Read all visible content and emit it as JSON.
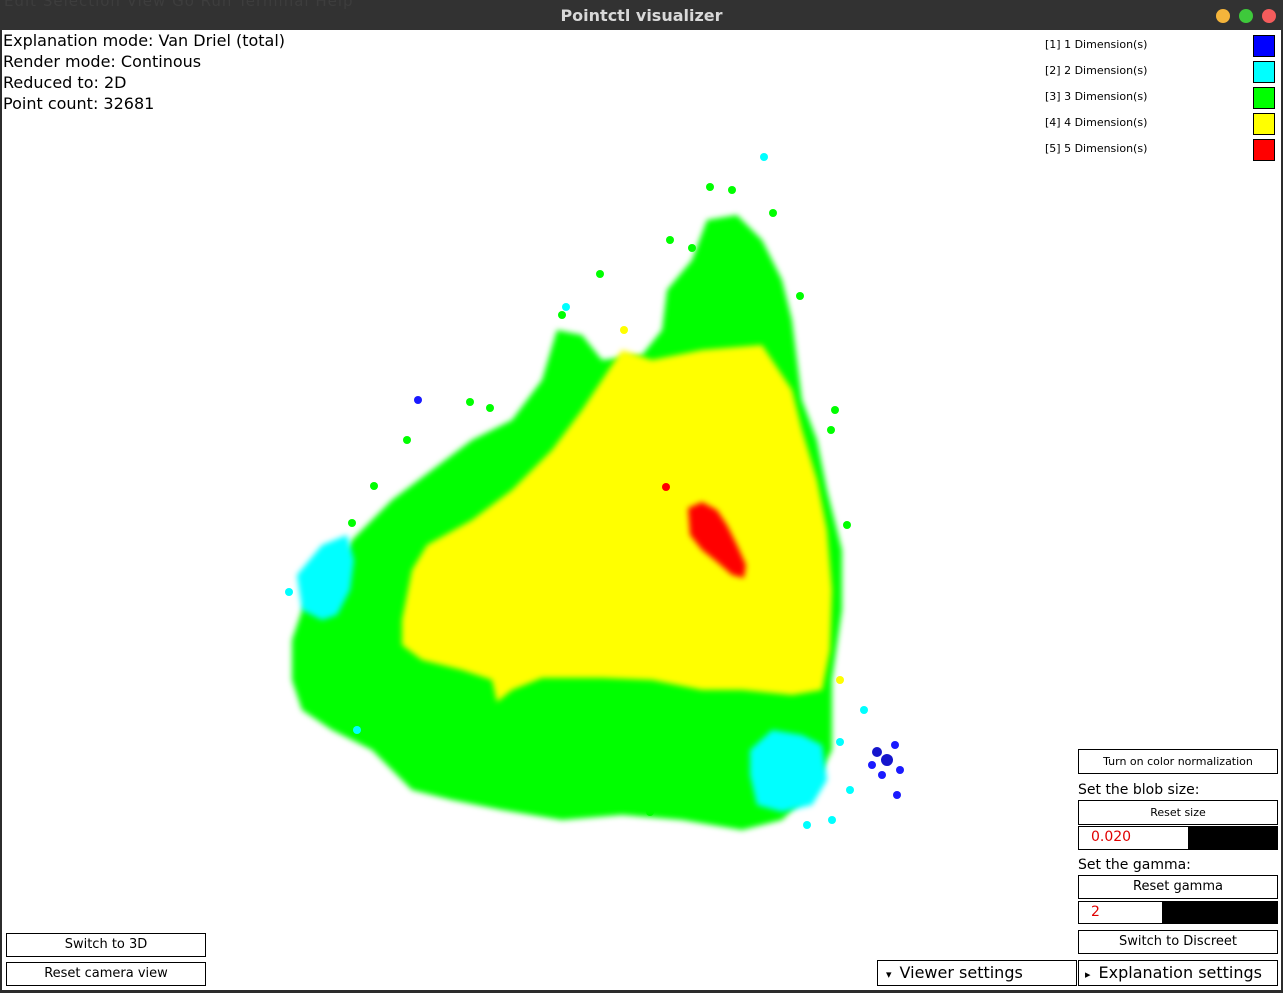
{
  "window": {
    "title": "Pointctl visualizer",
    "ghost_menu": "Edit   Selection   View   Go   Run   Terminal   Help"
  },
  "info": {
    "explanation_mode": "Explanation mode: Van Driel (total)",
    "render_mode": "Render mode: Continous",
    "reduced_to": "Reduced to: 2D",
    "point_count": "Point count: 32681"
  },
  "legend": [
    {
      "label": "[1] 1 Dimension(s)",
      "color": "#0000ff"
    },
    {
      "label": "[2] 2 Dimension(s)",
      "color": "#00ffff"
    },
    {
      "label": "[3] 3 Dimension(s)",
      "color": "#00ff00"
    },
    {
      "label": "[4] 4 Dimension(s)",
      "color": "#ffff00"
    },
    {
      "label": "[5] 5 Dimension(s)",
      "color": "#ff0000"
    }
  ],
  "controls": {
    "color_normalization": "Turn on color normalization",
    "blob_size_label": "Set the blob size:",
    "reset_size": "Reset size",
    "blob_size_value": "0.020",
    "blob_size_fraction": 0.55,
    "gamma_label": "Set the gamma:",
    "reset_gamma": "Reset gamma",
    "gamma_value": "2",
    "gamma_fraction": 0.42,
    "switch_discreet": "Switch to Discreet",
    "switch_3d": "Switch to 3D",
    "reset_camera": "Reset camera view",
    "viewer_settings": "Viewer settings",
    "explanation_settings": "Explanation settings",
    "viewer_arrow": "▾",
    "explanation_arrow": "▸"
  }
}
